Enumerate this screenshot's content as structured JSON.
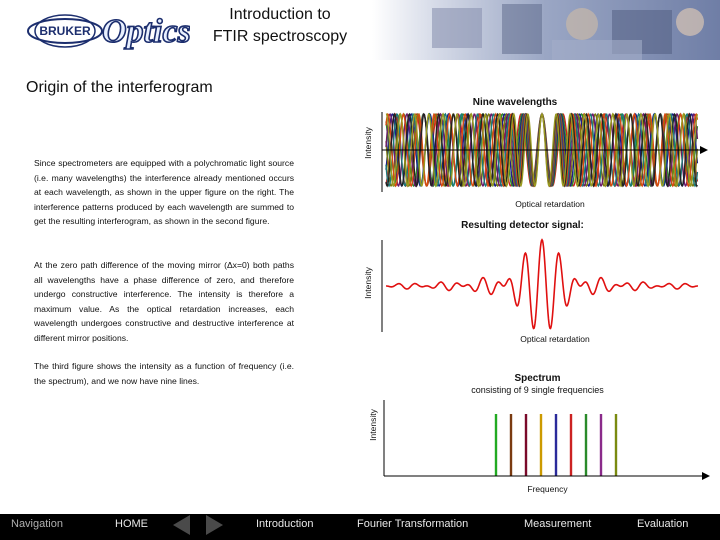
{
  "header": {
    "logo_bruker_text": "BRUKER",
    "logo_optics_text": "Optics",
    "title_line1": "Introduction to",
    "title_line2": "FTIR spectroscopy"
  },
  "headline": "Origin of the interferogram",
  "paragraphs": [
    "Since spectrometers are equipped with a polychromatic light source (i.e. many wavelengths) the interference already mentioned occurs at each wavelength, as shown in the upper figure on the right. The interference patterns produced by each wavelength are summed to get the resulting interferogram, as shown in the second figure.",
    "At the zero path difference of the moving mirror (Δx=0) both paths all wavelengths have a phase difference of zero, and therefore undergo constructive interference. The intensity is therefore a maximum value. As the optical retardation increases, each wavelength undergoes constructive and destructive interference at different mirror positions.",
    "The third figure shows the intensity as a function of frequency (i.e. the spectrum), and we now have nine lines."
  ],
  "chart_data": [
    {
      "type": "line",
      "title": "Nine wavelengths",
      "xlabel": "Optical retardation",
      "ylabel": "Intensity",
      "series_count": 9,
      "colors": [
        "#cc2222",
        "#2a8a2a",
        "#1a1a8a",
        "#7a7a10",
        "#6a1a6a",
        "#1a7a7a",
        "#d84a10",
        "#222222",
        "#9a9a20"
      ],
      "grid": false
    },
    {
      "type": "line",
      "title": "Resulting detector signal:",
      "xlabel": "Optical retardation",
      "ylabel": "Intensity",
      "color": "#e01010",
      "grid": false
    },
    {
      "type": "bar",
      "title": "Spectrum",
      "subtitle": "consisting of 9 single frequencies",
      "xlabel": "Frequency",
      "ylabel": "Intensity",
      "lines": 9,
      "colors": [
        "#22aa22",
        "#7a3a10",
        "#7a0a2a",
        "#cc9a00",
        "#2a2a9a",
        "#cc2222",
        "#2a8a2a",
        "#8a2a8a",
        "#7a8a10"
      ]
    }
  ],
  "nav": {
    "navigation": "Navigation",
    "home": "HOME",
    "introduction": "Introduction",
    "fourier": "Fourier Transformation",
    "measurement": "Measurement",
    "evaluation": "Evaluation"
  }
}
